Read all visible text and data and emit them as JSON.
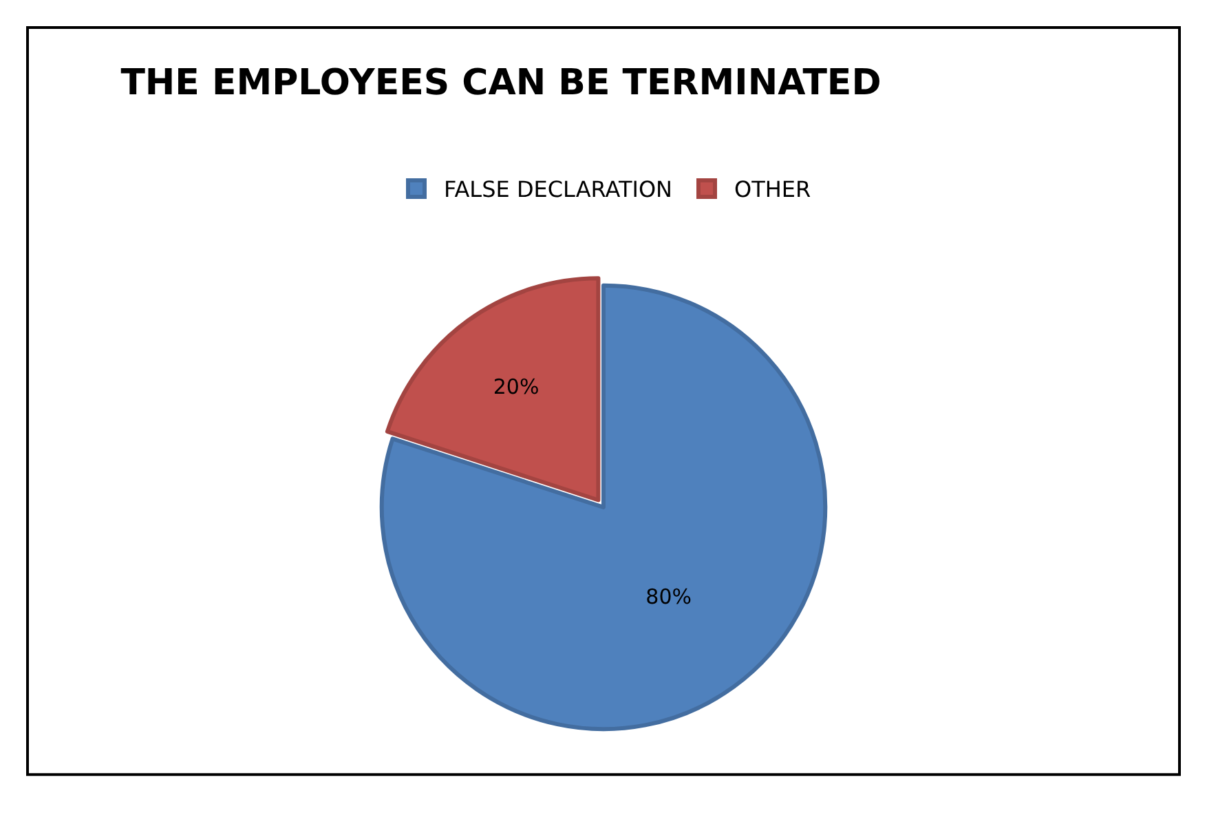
{
  "chart_data": {
    "type": "pie",
    "title": "THE EMPLOYEES CAN BE TERMINATED",
    "categories": [
      "FALSE DECLARATION",
      "OTHER"
    ],
    "values": [
      80,
      20
    ],
    "colors": [
      "#4f81bd",
      "#c0504d"
    ],
    "value_labels": [
      "80%",
      "20%"
    ],
    "legend": "top"
  }
}
